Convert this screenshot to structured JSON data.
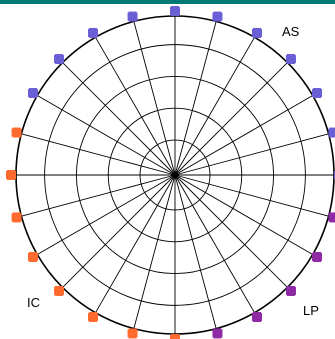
{
  "labels": {
    "as": "AS",
    "ic": "IC",
    "lp": "LP"
  },
  "colors": {
    "top_bar": "#007a73",
    "grid": "#000000",
    "as": "#6b5fd6",
    "ic": "#ff6a2e",
    "lp": "#8e2aa3"
  },
  "dial": {
    "spokes": 24,
    "rings": 4
  },
  "markers": [
    {
      "group": "as",
      "angle_deg": 90
    },
    {
      "group": "as",
      "angle_deg": 105
    },
    {
      "group": "as",
      "angle_deg": 120
    },
    {
      "group": "as",
      "angle_deg": 135
    },
    {
      "group": "as",
      "angle_deg": 150
    },
    {
      "group": "as",
      "angle_deg": 75
    },
    {
      "group": "as",
      "angle_deg": 60
    },
    {
      "group": "as",
      "angle_deg": 45
    },
    {
      "group": "as",
      "angle_deg": 30
    },
    {
      "group": "as",
      "angle_deg": 15
    },
    {
      "group": "as",
      "angle_deg": 0
    },
    {
      "group": "ic",
      "angle_deg": 165
    },
    {
      "group": "ic",
      "angle_deg": 180
    },
    {
      "group": "ic",
      "angle_deg": 195
    },
    {
      "group": "ic",
      "angle_deg": 210
    },
    {
      "group": "ic",
      "angle_deg": 225
    },
    {
      "group": "ic",
      "angle_deg": 240
    },
    {
      "group": "ic",
      "angle_deg": 255
    },
    {
      "group": "ic",
      "angle_deg": 270
    },
    {
      "group": "lp",
      "angle_deg": 285
    },
    {
      "group": "lp",
      "angle_deg": 300
    },
    {
      "group": "lp",
      "angle_deg": 315
    },
    {
      "group": "lp",
      "angle_deg": 330
    },
    {
      "group": "lp",
      "angle_deg": 345
    }
  ]
}
